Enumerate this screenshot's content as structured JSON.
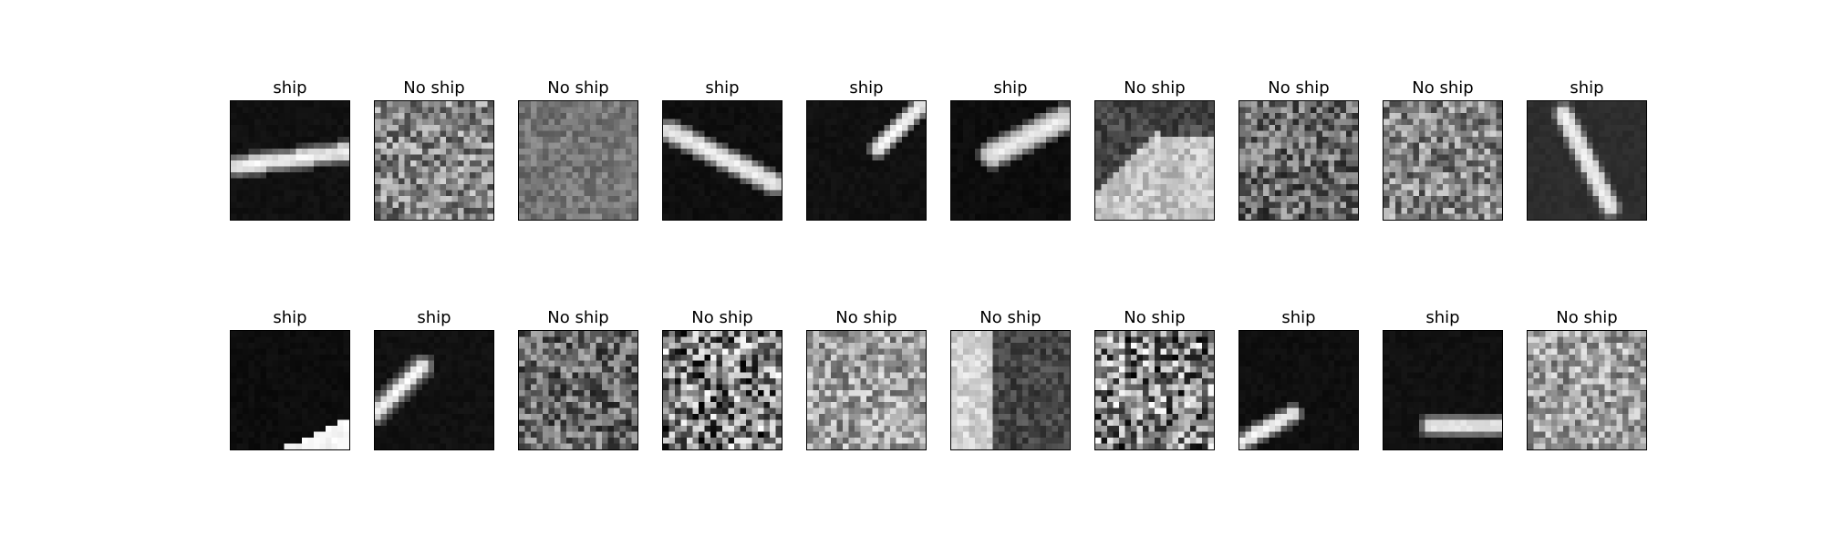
{
  "figure": {
    "panels": [
      {
        "title": "ship",
        "image": {
          "kind": "ship",
          "background": "dark",
          "description": "bright elongated vessel, shallow diagonal across center"
        }
      },
      {
        "title": "No ship",
        "image": {
          "kind": "noise",
          "background": "mid-gray speckle"
        }
      },
      {
        "title": "No ship",
        "image": {
          "kind": "noise",
          "background": "vertical streak texture"
        }
      },
      {
        "title": "ship",
        "image": {
          "kind": "ship",
          "background": "dark",
          "description": "bright vessel, diagonal from upper-left to lower-right"
        }
      },
      {
        "title": "ship",
        "image": {
          "kind": "ship",
          "background": "dark",
          "description": "short bright vessel near top-right"
        }
      },
      {
        "title": "ship",
        "image": {
          "kind": "ship",
          "background": "dark",
          "description": "bright oval vessel upper-right of center"
        }
      },
      {
        "title": "No ship",
        "image": {
          "kind": "bright-region",
          "background": "bright lower-left region with dark top-right"
        }
      },
      {
        "title": "No ship",
        "image": {
          "kind": "noise",
          "background": "dark streaky noise"
        }
      },
      {
        "title": "No ship",
        "image": {
          "kind": "noise",
          "background": "mid-gray speckle"
        }
      },
      {
        "title": "ship",
        "image": {
          "kind": "ship",
          "background": "dark gray",
          "description": "bright vessel, steep diagonal"
        }
      },
      {
        "title": "ship",
        "image": {
          "kind": "ship",
          "background": "dark",
          "description": "bright wedge at bottom-right corner"
        }
      },
      {
        "title": "ship",
        "image": {
          "kind": "ship",
          "background": "dark",
          "description": "bright vessel on left, diagonal upward"
        }
      },
      {
        "title": "No ship",
        "image": {
          "kind": "noise",
          "background": "dark mottled texture"
        }
      },
      {
        "title": "No ship",
        "image": {
          "kind": "noise",
          "background": "high-contrast speckle"
        }
      },
      {
        "title": "No ship",
        "image": {
          "kind": "noise",
          "background": "light-gray blocky speckle"
        }
      },
      {
        "title": "No ship",
        "image": {
          "kind": "noise",
          "background": "streaky mixed texture"
        }
      },
      {
        "title": "No ship",
        "image": {
          "kind": "noise",
          "background": "high-contrast speckle"
        }
      },
      {
        "title": "ship",
        "image": {
          "kind": "ship",
          "background": "dark",
          "description": "bright vessel at lower-left, diagonal"
        }
      },
      {
        "title": "ship",
        "image": {
          "kind": "ship",
          "background": "dark",
          "description": "bright horizontal vessel lower-right"
        }
      },
      {
        "title": "No ship",
        "image": {
          "kind": "noise",
          "background": "light-gray blocky speckle"
        }
      }
    ]
  }
}
